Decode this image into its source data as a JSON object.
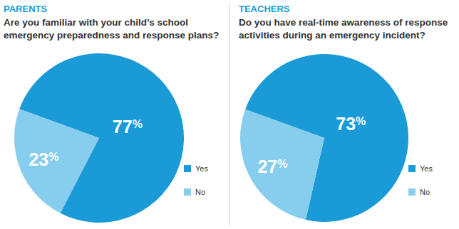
{
  "chart_data": [
    {
      "type": "pie",
      "title": "PARENTS",
      "subtitle": "Are you familiar with your child’s school emergency preparedness and response plans?",
      "categories": [
        "Yes",
        "No"
      ],
      "values": [
        77,
        23
      ],
      "value_labels": [
        "77%",
        "23%"
      ],
      "colors": [
        "#1a9ad6",
        "#86cdee"
      ],
      "data_labels": true,
      "legend": "right"
    },
    {
      "type": "pie",
      "title": "TEACHERS",
      "subtitle": "Do you have real-time awareness of response activities during an emergency incident?",
      "categories": [
        "Yes",
        "No"
      ],
      "values": [
        73,
        27
      ],
      "value_labels": [
        "73%",
        "27%"
      ],
      "colors": [
        "#1a9ad6",
        "#86cdee"
      ],
      "data_labels": true,
      "legend": "right"
    }
  ]
}
